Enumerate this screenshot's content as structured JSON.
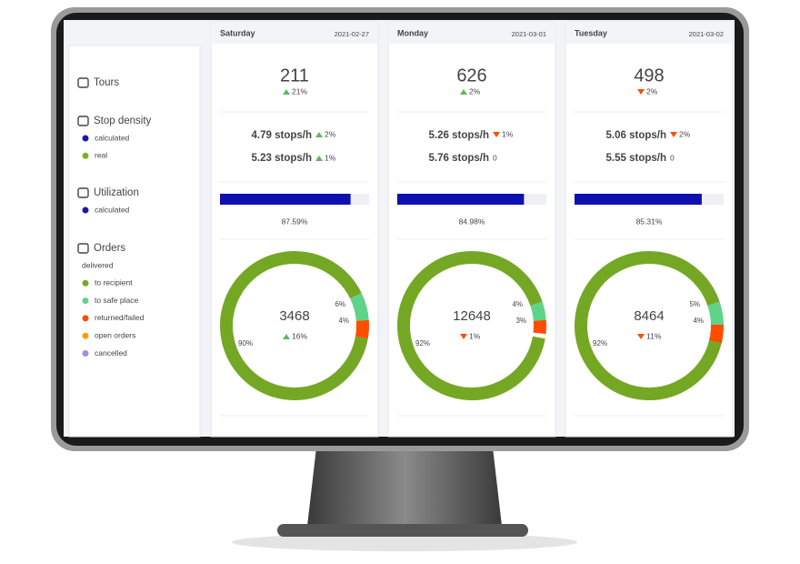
{
  "sidebar": {
    "tours": {
      "title": "Tours"
    },
    "stop_density": {
      "title": "Stop density",
      "items": [
        {
          "label": "calculated",
          "color": "#1a1aa8"
        },
        {
          "label": "real",
          "color": "#7cb518"
        }
      ]
    },
    "utilization": {
      "title": "Utilization",
      "items": [
        {
          "label": "calculated",
          "color": "#1a1aa8"
        }
      ]
    },
    "orders": {
      "title": "Orders",
      "subtitle": "delivered",
      "items": [
        {
          "label": "to recipient",
          "color": "#74a824"
        },
        {
          "label": "to safe place",
          "color": "#5fd38a"
        },
        {
          "label": "returned/failed",
          "color": "#ff4d00"
        },
        {
          "label": "open orders",
          "color": "#f5a000"
        },
        {
          "label": "cancelled",
          "color": "#a78be0"
        }
      ]
    }
  },
  "columns": [
    {
      "day": "Saturday",
      "date": "2021-02-27",
      "tours": "211",
      "tours_change": {
        "text": "21%",
        "direction": "up"
      },
      "stops_calculated": "4.79 stops/h",
      "stops_calculated_change": {
        "text": "2%",
        "direction": "up"
      },
      "stops_real": "5.23 stops/h",
      "stops_real_change": {
        "text": "1%",
        "direction": "up"
      },
      "utilization": {
        "value": 87.59,
        "label": "87.59%"
      },
      "orders": "3468",
      "orders_change": {
        "text": "16%",
        "direction": "up"
      },
      "segments": [
        {
          "value": 90,
          "label": "90%"
        },
        {
          "value": 6,
          "label": "6%"
        },
        {
          "value": 4,
          "label": "4%"
        }
      ]
    },
    {
      "day": "Monday",
      "date": "2021-03-01",
      "tours": "626",
      "tours_change": {
        "text": "2%",
        "direction": "up"
      },
      "stops_calculated": "5.26 stops/h",
      "stops_calculated_change": {
        "text": "1%",
        "direction": "down"
      },
      "stops_real": "5.76 stops/h",
      "stops_real_change": {
        "text": "0",
        "direction": "none"
      },
      "utilization": {
        "value": 84.98,
        "label": "84.98%"
      },
      "orders": "12648",
      "orders_change": {
        "text": "1%",
        "direction": "down"
      },
      "segments": [
        {
          "value": 92,
          "label": "92%"
        },
        {
          "value": 4,
          "label": "4%"
        },
        {
          "value": 3,
          "label": "3%"
        }
      ]
    },
    {
      "day": "Tuesday",
      "date": "2021-03-02",
      "tours": "498",
      "tours_change": {
        "text": "2%",
        "direction": "down"
      },
      "stops_calculated": "5.06 stops/h",
      "stops_calculated_change": {
        "text": "2%",
        "direction": "down"
      },
      "stops_real": "5.55 stops/h",
      "stops_real_change": {
        "text": "0",
        "direction": "none"
      },
      "utilization": {
        "value": 85.31,
        "label": "85.31%"
      },
      "orders": "8464",
      "orders_change": {
        "text": "11%",
        "direction": "down"
      },
      "segments": [
        {
          "value": 92,
          "label": "92%"
        },
        {
          "value": 5,
          "label": "5%"
        },
        {
          "value": 4,
          "label": "4%"
        }
      ]
    }
  ]
}
